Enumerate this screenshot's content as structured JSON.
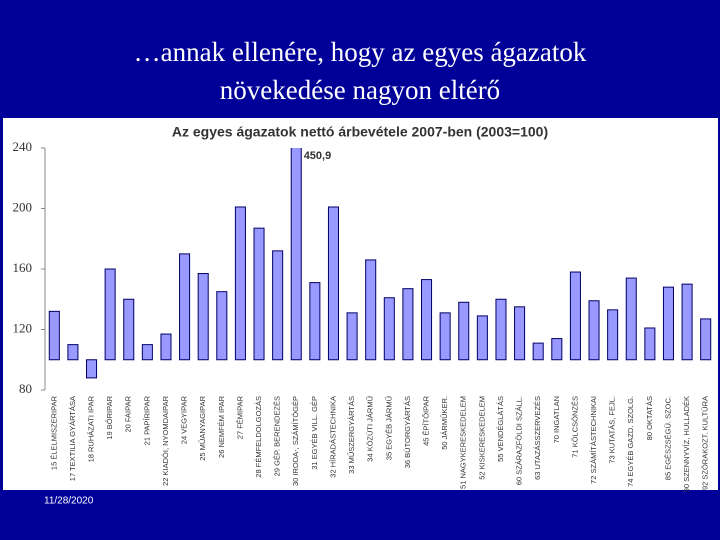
{
  "slide_title": [
    "…annak ellenére, hogy az egyes ágazatok",
    "növekedése nagyon eltérő"
  ],
  "date": "11/28/2020",
  "chart_data": {
    "type": "bar",
    "title": "Az egyes ágazatok nettó árbevétele 2007-ben (2003=100)",
    "categories": [
      "15 ÉLELMISZERIPAR",
      "17 TEXTILIA GYÁRTÁSA",
      "18 RUHÁZATI IPAR",
      "19 BŐRIPAR",
      "20 FAIPAR",
      "21 PAPÍRIPAR",
      "22 KIADÓI, NYOMDAIPAR",
      "24 VEGYIPAR",
      "25 MŰANYAGIPAR",
      "26 NEMFÉM IPAR",
      "27 FÉMIPAR",
      "28 FÉMFELDOLGOZÁS",
      "29 GÉP. BERENDEZÉS",
      "30 IRODA-, SZÁMÍTÓGÉP",
      "31 EGYÉB VILL. GÉP",
      "32 HÍRADÁSTECHNIKA",
      "33 MŰSZERGYÁRTÁS",
      "34 KÖZÚTI JÁRMŰ",
      "35 EGYÉB JÁRMŰ",
      "36 BÚTORGYÁRTÁS",
      "45 ÉPÍTŐIPAR",
      "50 JÁRMŰKER.",
      "51 NAGYKERESKEDELEM",
      "52 KISKERESKEDELEM",
      "55 VENDÉGLÁTÁS",
      "60 SZÁRAZFÖLDI SZÁLL.",
      "63 UTAZÁSSZERVEZÉS",
      "70 INGATLAN",
      "71 KÖLCSÖNZÉS",
      "72 SZÁMÍTÁSTECHNIKAI",
      "73 KUTATÁS, FEJL.",
      "74 EGYÉB GAZD. SZOLG.",
      "80 OKTATÁS",
      "85 EGÉSZSÉGÜ. SZOC.",
      "90 SZENNYVÍZ, HULLADÉK",
      "92 SZÓRAKOZT. KULTÚRA"
    ],
    "values": [
      132,
      110,
      88,
      160,
      140,
      110,
      117,
      170,
      157,
      145,
      201,
      187,
      172,
      450.9,
      151,
      201,
      131,
      166,
      141,
      147,
      153,
      131,
      138,
      129,
      140,
      135,
      111,
      114,
      158,
      139,
      133,
      154,
      121,
      148,
      150,
      127
    ],
    "value_labels": [
      null,
      null,
      null,
      null,
      null,
      null,
      null,
      null,
      null,
      null,
      null,
      null,
      null,
      "450,9",
      null,
      null,
      null,
      null,
      null,
      null,
      null,
      null,
      null,
      null,
      null,
      null,
      null,
      null,
      null,
      null,
      null,
      null,
      null,
      null,
      null,
      null
    ],
    "baseline": 100,
    "color": "#9999ff",
    "ylim": [
      80,
      240
    ],
    "yticks": [
      80,
      120,
      160,
      200,
      240
    ],
    "grid": false
  }
}
